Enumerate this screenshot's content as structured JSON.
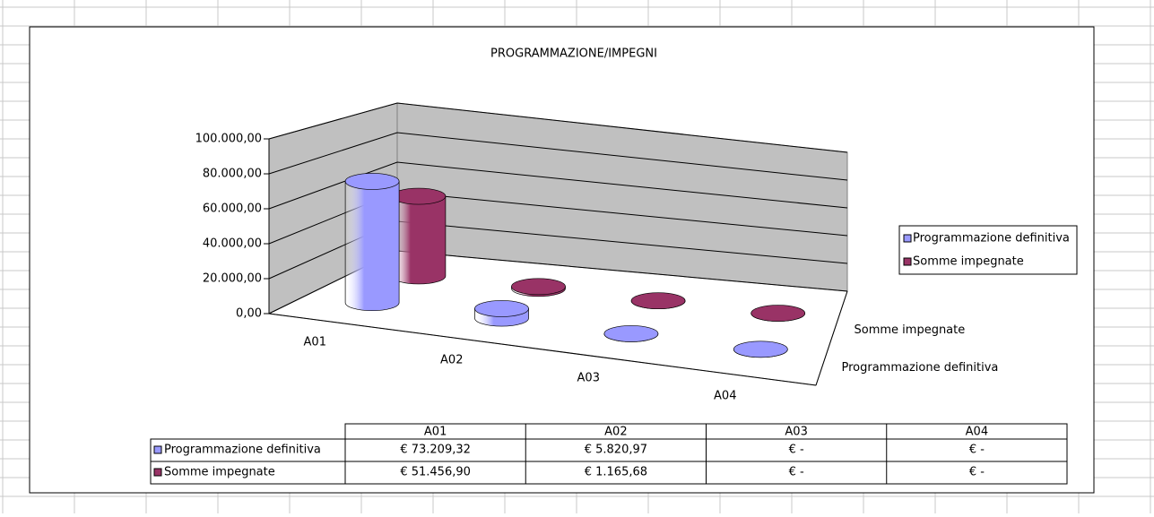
{
  "chart_data": {
    "type": "bar3d",
    "title": "PROGRAMMAZIONE/IMPEGNI",
    "categories": [
      "A01",
      "A02",
      "A03",
      "A04"
    ],
    "series": [
      {
        "name": "Programmazione definitiva",
        "color": "#9999ff",
        "values": [
          73209.32,
          5820.97,
          0,
          0
        ],
        "value_labels": [
          "€ 73.209,32",
          "€ 5.820,97",
          "€ -",
          "€ -"
        ]
      },
      {
        "name": "Somme impegnate",
        "color": "#993366",
        "values": [
          51456.9,
          1165.68,
          0,
          0
        ],
        "value_labels": [
          "€ 51.456,90",
          "€ 1.165,68",
          "€ -",
          "€ -"
        ]
      }
    ],
    "ylim": [
      0,
      100000
    ],
    "yticks": [
      {
        "value": 0,
        "label": "0,00"
      },
      {
        "value": 20000,
        "label": "20.000,00"
      },
      {
        "value": 40000,
        "label": "40.000,00"
      },
      {
        "value": 60000,
        "label": "60.000,00"
      },
      {
        "value": 80000,
        "label": "80.000,00"
      },
      {
        "value": 100000,
        "label": "100.000,00"
      }
    ],
    "grid": true,
    "legend": "right"
  }
}
